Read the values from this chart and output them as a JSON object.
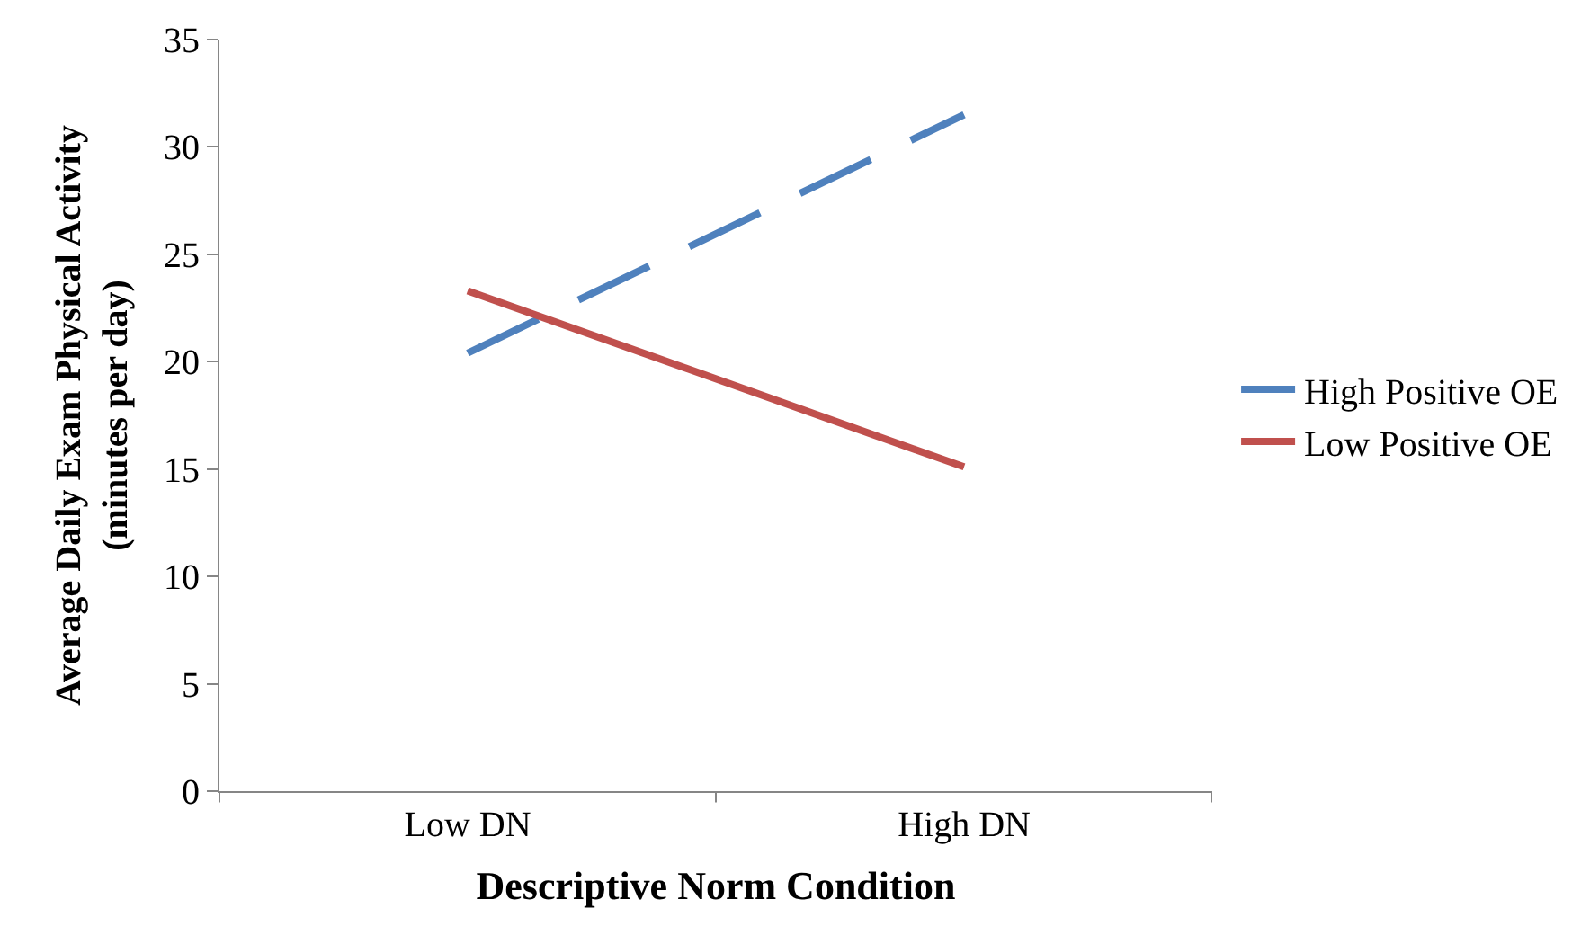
{
  "chart_data": {
    "type": "line",
    "xlabel": "Descriptive Norm Condition",
    "ylabel": "Average Daily Exam Physical Activity\n(minutes per day)",
    "categories": [
      "Low DN",
      "High DN"
    ],
    "series": [
      {
        "name": "High Positive OE",
        "color": "#4f81bd",
        "values": [
          20.4,
          31.5
        ],
        "line_style": "dashed"
      },
      {
        "name": "Low Positive OE",
        "color": "#c0504d",
        "values": [
          23.3,
          15.1
        ],
        "line_style": "solid"
      }
    ],
    "ylim": [
      0,
      35
    ],
    "yticks": [
      0,
      5,
      10,
      15,
      20,
      25,
      30,
      35
    ],
    "legend": "right",
    "marker": "none"
  }
}
